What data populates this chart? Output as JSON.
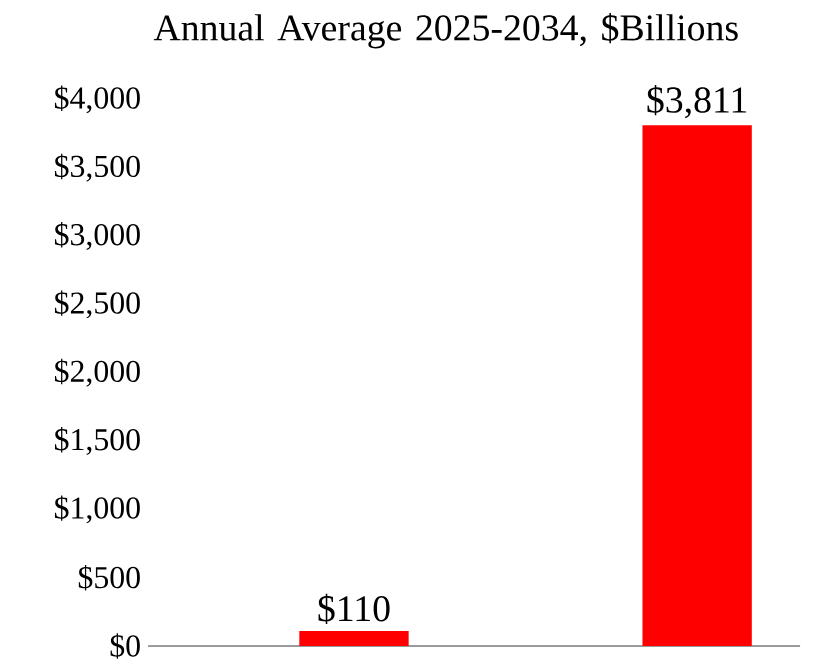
{
  "chart_data": {
    "type": "bar",
    "title": "Annual Average 2025-2034, $Billions",
    "categories": [
      null,
      null
    ],
    "values": [
      110,
      3811
    ],
    "value_labels": [
      "$110",
      "$3,811"
    ],
    "color": "#ff0000",
    "ylim": [
      0,
      4000
    ],
    "yticks": [
      {
        "value": 0,
        "label": "$0"
      },
      {
        "value": 500,
        "label": "$500"
      },
      {
        "value": 1000,
        "label": "$1,000"
      },
      {
        "value": 1500,
        "label": "$1,500"
      },
      {
        "value": 2000,
        "label": "$2,000"
      },
      {
        "value": 2500,
        "label": "$2,500"
      },
      {
        "value": 3000,
        "label": "$3,000"
      },
      {
        "value": 3500,
        "label": "$3,500"
      },
      {
        "value": 4000,
        "label": "$4,000"
      }
    ]
  }
}
